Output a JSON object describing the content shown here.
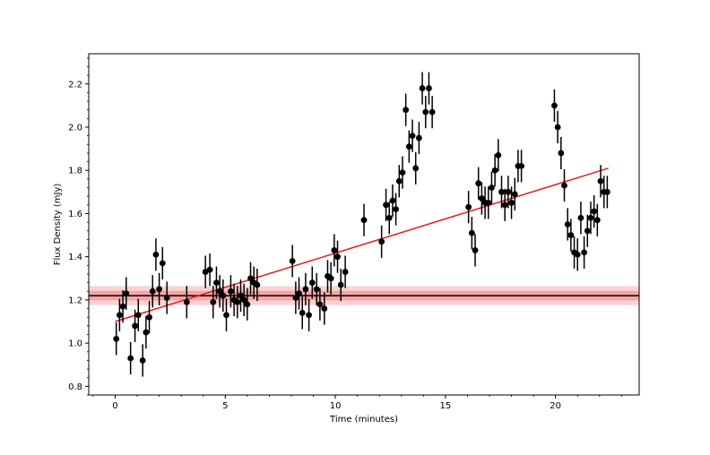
{
  "chart_data": {
    "type": "scatter",
    "xlabel": "Time (minutes)",
    "ylabel": "Flux Density (mJy)",
    "xlim": [
      -1.2,
      23.8
    ],
    "ylim": [
      0.76,
      2.34
    ],
    "x_ticks": [
      0,
      5,
      10,
      15,
      20
    ],
    "y_ticks": [
      0.8,
      1.0,
      1.2,
      1.4,
      1.6,
      1.8,
      2.0,
      2.2
    ],
    "x_tick_labels": [
      "0",
      "5",
      "10",
      "15",
      "20"
    ],
    "y_tick_labels": [
      "0.8",
      "1.0",
      "1.2",
      "1.4",
      "1.6",
      "1.8",
      "2.0",
      "2.2"
    ],
    "grid": false,
    "legend": "none",
    "colors": {
      "points": "#000000",
      "fit_line": "#e8191c",
      "mean_line": "#000000",
      "band": "#f08080"
    },
    "mean_flux": {
      "value": 1.22,
      "band_1sigma": [
        1.198,
        1.242
      ],
      "band_2sigma": [
        1.176,
        1.264
      ]
    },
    "linear_fit": {
      "x": [
        0.0,
        22.4
      ],
      "y": [
        1.1,
        1.81
      ]
    },
    "series": [
      {
        "x": [
          0.05,
          0.2,
          0.35,
          0.5,
          0.7,
          0.9,
          1.05,
          1.25,
          1.4,
          1.55,
          1.7,
          1.85,
          2.0,
          2.15,
          2.35,
          3.25,
          4.1,
          4.3,
          4.45,
          4.6,
          4.75,
          4.9,
          5.05,
          5.25,
          5.4,
          5.55,
          5.7,
          5.85,
          6.0,
          6.15,
          6.3,
          6.45,
          8.05,
          8.2,
          8.35,
          8.5,
          8.65,
          8.8,
          8.95,
          9.15,
          9.3,
          9.5,
          9.65,
          9.8,
          9.95,
          10.1,
          10.25,
          10.45,
          11.3,
          12.1,
          12.3,
          12.45,
          12.6,
          12.75,
          12.9,
          13.05,
          13.2,
          13.35,
          13.5,
          13.65,
          13.8,
          13.95,
          14.1,
          14.25,
          14.4,
          16.05,
          16.2,
          16.35,
          16.5,
          16.65,
          16.8,
          16.95,
          17.1,
          17.25,
          17.4,
          17.55,
          17.7,
          17.85,
          18.0,
          18.15,
          18.3,
          18.45,
          19.95,
          20.1,
          20.25,
          20.4,
          20.55,
          20.7,
          20.85,
          21.0,
          21.15,
          21.3,
          21.45,
          21.6,
          21.75,
          21.9,
          22.05,
          22.2,
          22.35
        ],
        "y": [
          1.02,
          1.13,
          1.17,
          1.23,
          0.93,
          1.08,
          1.13,
          0.92,
          1.05,
          1.12,
          1.24,
          1.41,
          1.25,
          1.37,
          1.21,
          1.19,
          1.33,
          1.34,
          1.19,
          1.28,
          1.24,
          1.22,
          1.13,
          1.24,
          1.2,
          1.19,
          1.22,
          1.2,
          1.18,
          1.3,
          1.28,
          1.27,
          1.38,
          1.21,
          1.23,
          1.14,
          1.25,
          1.13,
          1.28,
          1.25,
          1.18,
          1.16,
          1.31,
          1.3,
          1.43,
          1.4,
          1.27,
          1.33,
          1.57,
          1.47,
          1.64,
          1.58,
          1.66,
          1.62,
          1.75,
          1.79,
          2.08,
          1.91,
          1.96,
          1.81,
          1.95,
          2.18,
          2.07,
          2.18,
          2.07,
          1.63,
          1.51,
          1.43,
          1.74,
          1.67,
          1.65,
          1.65,
          1.72,
          1.8,
          1.87,
          1.7,
          1.64,
          1.7,
          1.65,
          1.69,
          1.82,
          1.82,
          2.1,
          2.0,
          1.88,
          1.73,
          1.55,
          1.5,
          1.42,
          1.41,
          1.58,
          1.42,
          1.52,
          1.58,
          1.61,
          1.57,
          1.75,
          1.7,
          1.7
        ],
        "yerr": 0.075
      }
    ]
  }
}
